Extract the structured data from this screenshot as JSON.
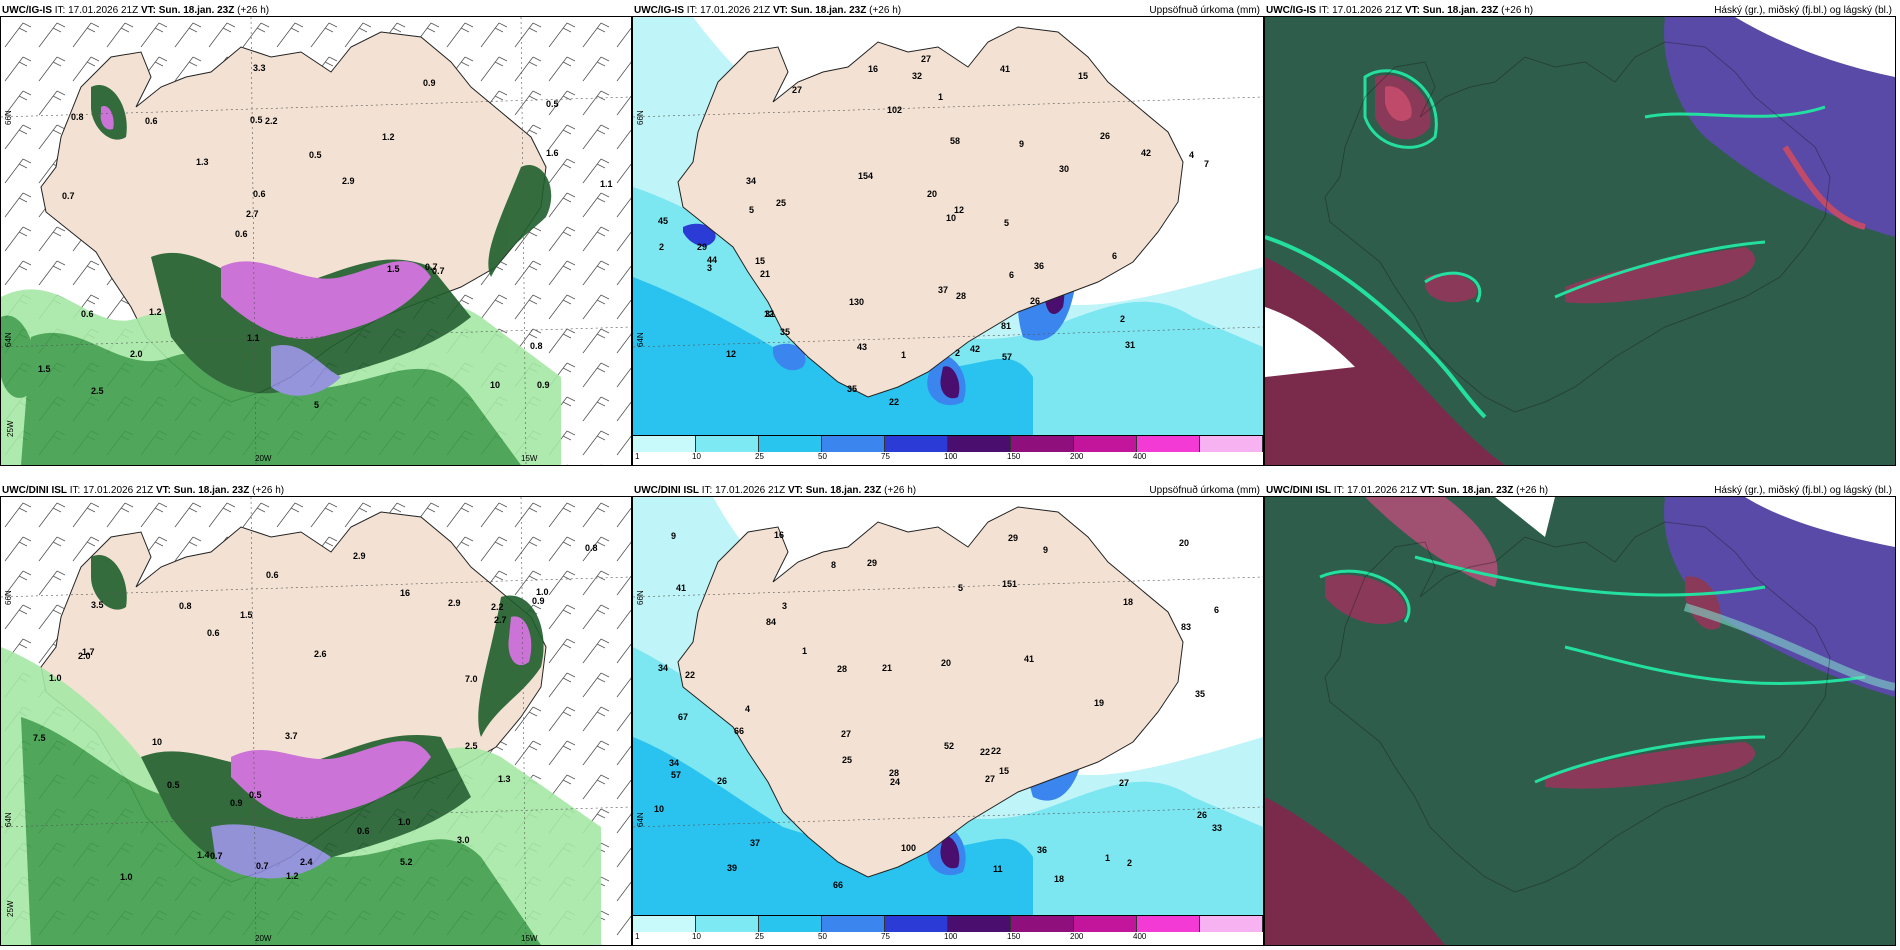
{
  "rows": [
    {
      "model": "UWC/IG-IS",
      "panels": [
        {
          "header": {
            "model": "UWC/IG-IS",
            "it": "IT: 17.01.2026 21Z",
            "vt_label": "VT:",
            "vt_value": "Sun. 18.jan. 23Z",
            "lead": "(+26 h)",
            "right": ""
          },
          "lat_ticks": [
            "66N",
            "64N"
          ],
          "lon_ticks": [
            "25W",
            "20W",
            "15W"
          ],
          "values": [
            "0.9",
            "0.7",
            "0.5",
            "0.6",
            "1.2",
            "2.5",
            "0.5",
            "0.5",
            "0.6",
            "1.3",
            "1.5",
            "2.0",
            "2.2",
            "2.9",
            "0.7",
            "0.8",
            "3.3",
            "1.1",
            "1.5",
            "1.6",
            "2.7",
            "1.1",
            "0.6",
            "0.6",
            "0.9",
            "1.2",
            "10",
            "0.8",
            "0.7",
            "5"
          ]
        },
        {
          "header": {
            "model": "UWC/IG-IS",
            "it": "IT: 17.01.2026 21Z",
            "vt_label": "VT:",
            "vt_value": "Sun. 18.jan. 23Z",
            "lead": "(+26 h)",
            "right": "Uppsöfnuð úrkoma (mm)"
          },
          "lat_ticks": [
            "66N",
            "64N"
          ],
          "values": [
            "12",
            "15",
            "27",
            "26",
            "28",
            "25",
            "21",
            "31",
            "42",
            "30",
            "29",
            "27",
            "26",
            "10",
            "22",
            "16",
            "31",
            "45",
            "12",
            "35",
            "57",
            "32",
            "102",
            "12",
            "20",
            "43",
            "44",
            "41",
            "58",
            "36",
            "34",
            "35",
            "42",
            "37",
            "2",
            "3",
            "4",
            "5",
            "9",
            "6",
            "7",
            "1",
            "1",
            "15",
            "2",
            "5",
            "6",
            "2",
            "130",
            "81",
            "154"
          ],
          "colorbar": {
            "labels": [
              "1",
              "10",
              "25",
              "50",
              "75",
              "100",
              "150",
              "200",
              "400"
            ],
            "colors": [
              "#c8f9fb",
              "#7de9f3",
              "#29c5ef",
              "#3a86ee",
              "#2a3bd6",
              "#4a0f6e",
              "#8f0f7d",
              "#c3149c",
              "#f43ad4",
              "#f7b2f1"
            ]
          }
        },
        {
          "header": {
            "model": "UWC/IG-IS",
            "it": "IT: 17.01.2026 21Z",
            "vt_label": "VT:",
            "vt_value": "Sun. 18.jan. 23Z",
            "lead": "(+26 h)",
            "right": "Háský (gr.), miðský (fj.bl.) og lágský (bl.)"
          }
        }
      ]
    },
    {
      "model": "UWC/DINI ISL",
      "panels": [
        {
          "header": {
            "model": "UWC/DINI ISL",
            "it": "IT: 17.01.2026 21Z",
            "vt_label": "VT:",
            "vt_value": "Sun. 18.jan. 23Z",
            "lead": "(+26 h)",
            "right": ""
          },
          "lat_ticks": [
            "66N",
            "64N"
          ],
          "lon_ticks": [
            "25W",
            "20W",
            "15W"
          ],
          "values": [
            "0.9",
            "0.5",
            "2.9",
            "1.0",
            "0.6",
            "1.4",
            "0.8",
            "1.0",
            "0.6",
            "2.0",
            "3.5",
            "2.9",
            "0.9",
            "3.7",
            "1.7",
            "5.2",
            "10",
            "7.5",
            "3.0",
            "2.5",
            "2.7",
            "2.6",
            "0.7",
            "1.3",
            "0.5",
            "2.4",
            "1.5",
            "0.6",
            "0.7",
            "2.2",
            "1.0",
            "0.8",
            "1.2",
            "7.0",
            "16",
            "1.0"
          ]
        },
        {
          "header": {
            "model": "UWC/DINI ISL",
            "it": "IT: 17.01.2026 21Z",
            "vt_label": "VT:",
            "vt_value": "Sun. 18.jan. 23Z",
            "lead": "(+26 h)",
            "right": "Uppsöfnuð úrkoma (mm)"
          },
          "lat_ticks": [
            "66N",
            "64N"
          ],
          "values": [
            "15",
            "22",
            "20",
            "27",
            "27",
            "21",
            "19",
            "22",
            "28",
            "20",
            "37",
            "34",
            "26",
            "28",
            "27",
            "26",
            "41",
            "57",
            "66",
            "84",
            "34",
            "22",
            "24",
            "39",
            "9",
            "29",
            "36",
            "67",
            "66",
            "33",
            "35",
            "25",
            "29",
            "41",
            "52",
            "16",
            "18",
            "10",
            "2",
            "3",
            "4",
            "5",
            "6",
            "8",
            "9",
            "1",
            "1",
            "11",
            "100",
            "83",
            "151",
            "18"
          ],
          "colorbar": {
            "labels": [
              "1",
              "10",
              "25",
              "50",
              "75",
              "100",
              "150",
              "200",
              "400"
            ],
            "colors": [
              "#c8f9fb",
              "#7de9f3",
              "#29c5ef",
              "#3a86ee",
              "#2a3bd6",
              "#4a0f6e",
              "#8f0f7d",
              "#c3149c",
              "#f43ad4",
              "#f7b2f1"
            ]
          }
        },
        {
          "header": {
            "model": "UWC/DINI ISL",
            "it": "IT: 17.01.2026 21Z",
            "vt_label": "VT:",
            "vt_value": "Sun. 18.jan. 23Z",
            "lead": "(+26 h)",
            "right": "Háský (gr.), miðský (fj.bl.) og lágský (bl.)"
          }
        }
      ]
    }
  ]
}
